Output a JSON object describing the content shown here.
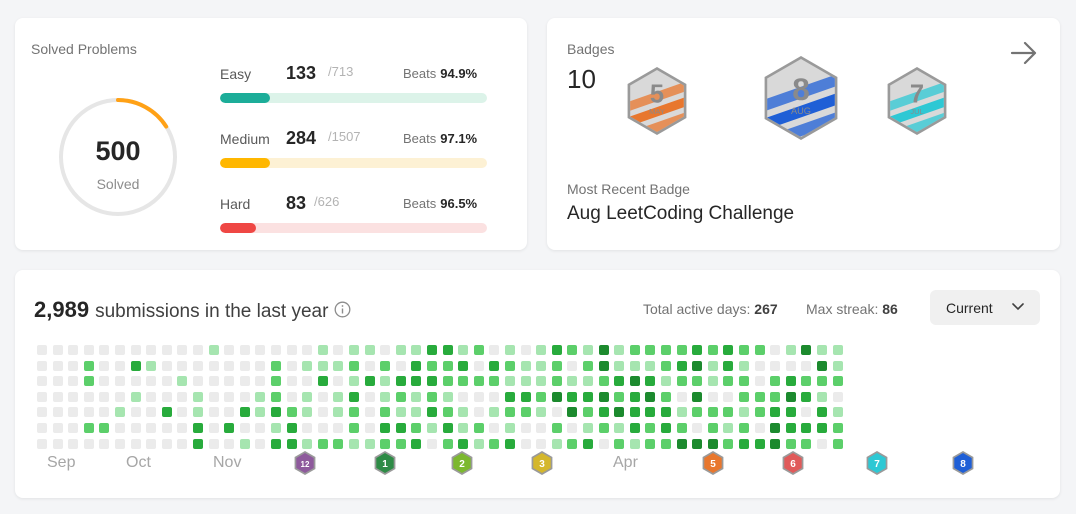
{
  "solved": {
    "title": "Solved Problems",
    "total": "500",
    "total_label": "Solved",
    "progress_fraction": 0.16,
    "difficulties": [
      {
        "label": "Easy",
        "count": "133",
        "total": "/713",
        "beats_label": "Beats",
        "beats": "94.9%",
        "fraction": 0.187,
        "color": "#1cad99",
        "track": "#dcf3e9"
      },
      {
        "label": "Medium",
        "count": "284",
        "total": "/1507",
        "beats_label": "Beats",
        "beats": "97.1%",
        "fraction": 0.188,
        "color": "#ffb700",
        "track": "#fdf1d4"
      },
      {
        "label": "Hard",
        "count": "83",
        "total": "/626",
        "beats_label": "Beats",
        "beats": "96.5%",
        "fraction": 0.133,
        "color": "#ef4744",
        "track": "#fbe1e1"
      }
    ]
  },
  "badges": {
    "title": "Badges",
    "count": "10",
    "items": [
      {
        "name": "may-badge",
        "number": "5",
        "month": "MAY",
        "color": "#e8772e"
      },
      {
        "name": "aug-badge",
        "number": "8",
        "month": "AUG",
        "color": "#1f5fd6"
      },
      {
        "name": "jul-badge",
        "number": "7",
        "month": "JUL",
        "color": "#2ec8d4"
      }
    ],
    "recent_label": "Most Recent Badge",
    "recent_name": "Aug LeetCoding Challenge"
  },
  "submissions": {
    "count": "2,989",
    "text": "submissions in the last year",
    "active_days_label": "Total active days:",
    "active_days": "267",
    "max_streak_label": "Max streak:",
    "max_streak": "86",
    "dropdown_value": "Current",
    "month_labels": [
      "Sep",
      "Oct",
      "Nov",
      "Apr"
    ],
    "mini_badges": [
      {
        "name": "mini-badge-12",
        "text": "12",
        "color": "#8e5a9c"
      },
      {
        "name": "mini-badge-1",
        "text": "1",
        "color": "#2e8b46"
      },
      {
        "name": "mini-badge-2",
        "text": "2",
        "color": "#7cb82f"
      },
      {
        "name": "mini-badge-3",
        "text": "3",
        "color": "#d4b72c"
      },
      {
        "name": "mini-badge-5",
        "text": "5",
        "color": "#e8772e"
      },
      {
        "name": "mini-badge-6",
        "text": "6",
        "color": "#e05a5a"
      },
      {
        "name": "mini-badge-7",
        "text": "7",
        "color": "#2ec8d4"
      },
      {
        "name": "mini-badge-8",
        "text": "8",
        "color": "#1f5fd6"
      }
    ]
  },
  "colors": {
    "empty": "#ebebeb",
    "level1": "#a6e5b0",
    "level2": "#5ccf6a",
    "level3": "#28ab3c",
    "level4": "#1c8a2e"
  }
}
